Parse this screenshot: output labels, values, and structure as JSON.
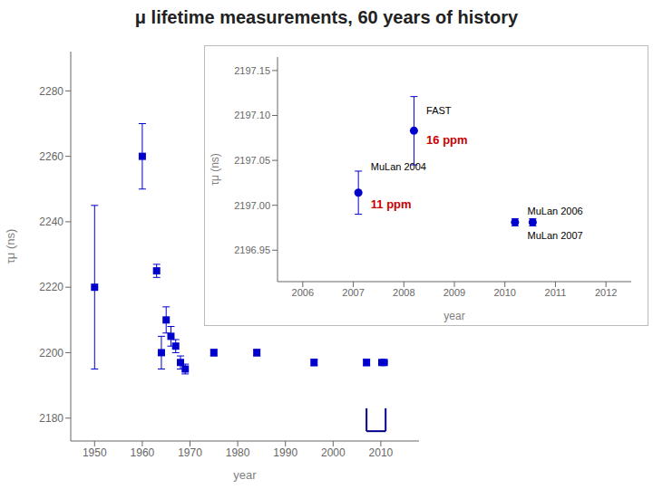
{
  "chart_data": [
    {
      "type": "scatter",
      "title": "μ lifetime measurements, 60 years of history",
      "xlabel": "year",
      "ylabel": "τμ (ns)",
      "xlim": [
        1945,
        2018
      ],
      "ylim": [
        2173,
        2292
      ],
      "xticks": [
        1950,
        1960,
        1970,
        1980,
        1990,
        2000,
        2010
      ],
      "yticks": [
        2180,
        2200,
        2220,
        2240,
        2260,
        2280
      ],
      "grid": false,
      "color": "#0000cc",
      "marker": "square",
      "x": [
        1950,
        1960,
        1963,
        1964,
        1965,
        1966,
        1967,
        1968,
        1969,
        1975,
        1984,
        1996,
        2007,
        2010.2,
        2010.7
      ],
      "values": [
        2220,
        2260,
        2225,
        2200,
        2210,
        2205,
        2202,
        2197,
        2195,
        2200,
        2200,
        2197,
        2197,
        2197,
        2197
      ],
      "errors": [
        25,
        10,
        2,
        5,
        4,
        3,
        2,
        2,
        1.5,
        1,
        1,
        1,
        1,
        0.3,
        0.3
      ],
      "bracket": {
        "x": [
          2007,
          2011
        ],
        "y": [
          2176,
          2183
        ],
        "color": "#00008b"
      }
    },
    {
      "type": "scatter",
      "xlabel": "year",
      "ylabel": "τμ (ns)",
      "xlim": [
        2005.5,
        2012.5
      ],
      "ylim": [
        2196.915,
        2197.165
      ],
      "xticks": [
        2006,
        2007,
        2008,
        2009,
        2010,
        2011,
        2012
      ],
      "yticks": [
        2196.95,
        {
          "value": 2197.0,
          "label": "2197.00"
        },
        2197.05,
        {
          "value": 2197.1,
          "label": "2197.10"
        },
        2197.15
      ],
      "grid": false,
      "color": "#0000cc",
      "marker": "circle",
      "x": [
        2007.1,
        2008.2,
        2010.2,
        2010.55
      ],
      "values": [
        2197.014,
        2197.083,
        2196.981,
        2196.981
      ],
      "errors": [
        0.024,
        0.038,
        0.004,
        0.004
      ],
      "point_labels": [
        {
          "text": "MuLan 2004",
          "x": 2007.3,
          "y": 2197.043
        },
        {
          "text": "FAST",
          "x": 2008.4,
          "y": 2197.105
        },
        {
          "text": "MuLan 2006",
          "x": 2010.4,
          "y": 2196.994
        },
        {
          "text": "MuLan 2007",
          "x": 2010.4,
          "y": 2196.966
        }
      ],
      "annotations": [
        {
          "text": "16 ppm",
          "x": 2008.4,
          "y": 2197.073,
          "color": "#cc0000"
        },
        {
          "text": "11 ppm",
          "x": 2007.3,
          "y": 2197.001,
          "color": "#cc0000"
        }
      ]
    }
  ]
}
